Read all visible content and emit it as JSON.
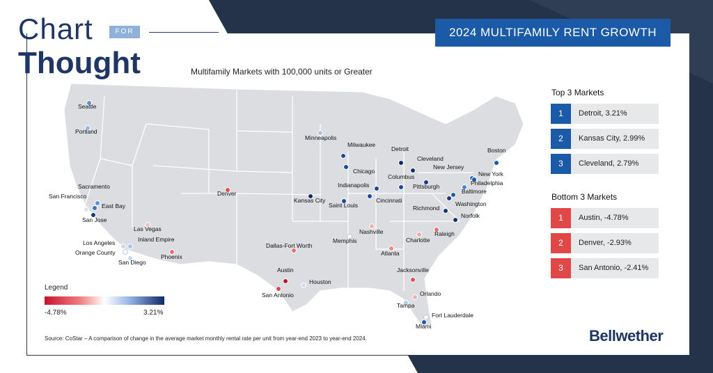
{
  "logo": {
    "chart": "Chart",
    "for": "FOR",
    "thought": "Thought"
  },
  "title": "2024 MULTIFAMILY RENT GROWTH",
  "map_subtitle": "Multifamily Markets with 100,000 units or Greater",
  "top3": {
    "heading": "Top 3 Markets",
    "items": [
      {
        "rank": "1",
        "text": "Detroit, 3.21%"
      },
      {
        "rank": "2",
        "text": "Kansas City, 2.99%"
      },
      {
        "rank": "3",
        "text": "Cleveland, 2.79%"
      }
    ]
  },
  "bottom3": {
    "heading": "Bottom 3 Markets",
    "items": [
      {
        "rank": "1",
        "text": "Austin, -4.78%"
      },
      {
        "rank": "2",
        "text": "Denver, -2.93%"
      },
      {
        "rank": "3",
        "text": "San Antonio, -2.41%"
      }
    ]
  },
  "legend": {
    "title": "Legend",
    "min": "-4.78%",
    "max": "3.21%"
  },
  "source": "Source: CoStar – A comparison of change in the average market monthly rental rate per unit from year-end 2023 to year-end 2024.",
  "brand": "Bellwether",
  "colors": {
    "top_rank": "#1a5aa6",
    "bottom_rank": "#e04848",
    "title_bg": "#1a5aa6",
    "navy": "#1f3564"
  },
  "markets": [
    {
      "name": "Seattle",
      "color": "#5a8fd0"
    },
    {
      "name": "Portland",
      "color": "#9ab8e6"
    },
    {
      "name": "Minneapolis",
      "color": "#a9c4ea"
    },
    {
      "name": "Milwaukee",
      "color": "#1a4a9a"
    },
    {
      "name": "Detroit",
      "color": "#0f2a66"
    },
    {
      "name": "Cleveland",
      "color": "#12306e"
    },
    {
      "name": "Boston",
      "color": "#1e5aa8"
    },
    {
      "name": "Chicago",
      "color": "#1a4a9a"
    },
    {
      "name": "New Jersey",
      "color": "#2a66b4"
    },
    {
      "name": "New York",
      "color": "#1e5aa8"
    },
    {
      "name": "Philadelphia",
      "color": "#4a86cc"
    },
    {
      "name": "Columbus",
      "color": "#1a4a9a"
    },
    {
      "name": "Pittsburgh",
      "color": "#153a80"
    },
    {
      "name": "Indianapolis",
      "color": "#1a4a9a"
    },
    {
      "name": "Baltimore",
      "color": "#1e5aa8"
    },
    {
      "name": "Sacramento",
      "color": "#5a8fd0"
    },
    {
      "name": "Denver",
      "color": "#e05050"
    },
    {
      "name": "Kansas City",
      "color": "#112c6a"
    },
    {
      "name": "Cincinnati",
      "color": "#1a4a9a"
    },
    {
      "name": "San Francisco",
      "color": "#d8e4f4"
    },
    {
      "name": "East Bay",
      "color": "#3a76c0"
    },
    {
      "name": "Saint Louis",
      "color": "#1a4a9a"
    },
    {
      "name": "Washington",
      "color": "#1a3a7a"
    },
    {
      "name": "San Jose",
      "color": "#153a80"
    },
    {
      "name": "Richmond",
      "color": "#153a80"
    },
    {
      "name": "Norfolk",
      "color": "#12306e"
    },
    {
      "name": "Las Vegas",
      "color": "#f4c0c0"
    },
    {
      "name": "Nashville",
      "color": "#f4b0b0"
    },
    {
      "name": "Raleigh",
      "color": "#e87070"
    },
    {
      "name": "Memphis",
      "color": "#ffffff"
    },
    {
      "name": "Charlotte",
      "color": "#f4a8a8"
    },
    {
      "name": "Los Angeles",
      "color": "#c8d8f0"
    },
    {
      "name": "Inland Empire",
      "color": "#a9c4ea"
    },
    {
      "name": "Dallas-Fort Worth",
      "color": "#e87070"
    },
    {
      "name": "Orange County",
      "color": "#ffffff"
    },
    {
      "name": "Atlanta",
      "color": "#f08888"
    },
    {
      "name": "Phoenix",
      "color": "#e87070"
    },
    {
      "name": "San Diego",
      "color": "#c8d8f0"
    },
    {
      "name": "Jacksonville",
      "color": "#e05050"
    },
    {
      "name": "Austin",
      "color": "#c8102e"
    },
    {
      "name": "Houston",
      "color": "#d0ddf2"
    },
    {
      "name": "San Antonio",
      "color": "#e04848"
    },
    {
      "name": "Orlando",
      "color": "#f4b0b0"
    },
    {
      "name": "Tampa",
      "color": "#b8cdee"
    },
    {
      "name": "Fort Lauderdale",
      "color": "#ffffff"
    },
    {
      "name": "Miami",
      "color": "#1e5aa8"
    }
  ]
}
